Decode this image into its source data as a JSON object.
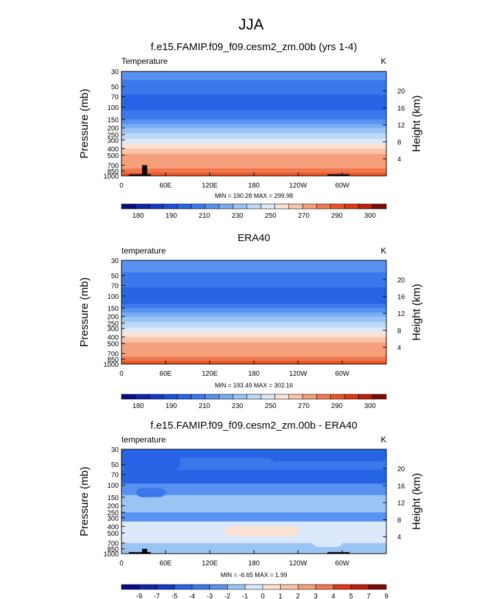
{
  "figure": {
    "main_title": "JJA",
    "season": "JJA"
  },
  "chart_data": [
    {
      "type": "heatmap",
      "title": "f.e15.FAMIP.f09_f09.cesm2_zm.00b (yrs 1-4)",
      "left_label": "Temperature",
      "right_label": "K",
      "ylabel": "Pressure (mb)",
      "y2label": "Height (km)",
      "xlabel": "",
      "x_ticks": [
        "0",
        "60E",
        "120E",
        "180",
        "120W",
        "60W"
      ],
      "x_tick_values": [
        0,
        60,
        120,
        180,
        240,
        300
      ],
      "xlim": [
        0,
        360
      ],
      "y_ticks": [
        "30",
        "50",
        "70",
        "100",
        "150",
        "200",
        "250",
        "300",
        "400",
        "500",
        "700",
        "850",
        "1000"
      ],
      "y_tick_values": [
        30,
        50,
        70,
        100,
        150,
        200,
        250,
        300,
        400,
        500,
        700,
        850,
        1000
      ],
      "ylim": [
        1000,
        30
      ],
      "height_ticks": [
        "4",
        "8",
        "12",
        "16",
        "20"
      ],
      "height_tick_values": [
        4,
        8,
        12,
        16,
        20
      ],
      "stats": "MIN = 190.28  MAX = 299.98",
      "min": 190.28,
      "max": 299.98,
      "colorbar_labels": [
        "180",
        "190",
        "210",
        "230",
        "250",
        "270",
        "290",
        "300"
      ],
      "levels": [
        175,
        180,
        185,
        190,
        200,
        210,
        220,
        230,
        240,
        250,
        260,
        270,
        280,
        290,
        295,
        300
      ],
      "bands": [
        {
          "p_top": 30,
          "p_bot": 40,
          "value": 213
        },
        {
          "p_top": 40,
          "p_bot": 55,
          "value": 208
        },
        {
          "p_top": 55,
          "p_bot": 65,
          "value": 203
        },
        {
          "p_top": 65,
          "p_bot": 110,
          "value": 197
        },
        {
          "p_top": 110,
          "p_bot": 125,
          "value": 203
        },
        {
          "p_top": 125,
          "p_bot": 150,
          "value": 208
        },
        {
          "p_top": 150,
          "p_bot": 175,
          "value": 215
        },
        {
          "p_top": 175,
          "p_bot": 200,
          "value": 225
        },
        {
          "p_top": 200,
          "p_bot": 240,
          "value": 235
        },
        {
          "p_top": 240,
          "p_bot": 290,
          "value": 245
        },
        {
          "p_top": 290,
          "p_bot": 340,
          "value": 255
        },
        {
          "p_top": 340,
          "p_bot": 400,
          "value": 265
        },
        {
          "p_top": 400,
          "p_bot": 480,
          "value": 275
        },
        {
          "p_top": 480,
          "p_bot": 580,
          "value": 283
        },
        {
          "p_top": 580,
          "p_bot": 780,
          "value": 287
        },
        {
          "p_top": 780,
          "p_bot": 900,
          "value": 292
        },
        {
          "p_top": 900,
          "p_bot": 1000,
          "value": 297
        }
      ],
      "topography": [
        {
          "lon_start": 10,
          "lon_end": 40,
          "pressure": 950
        },
        {
          "lon_start": 28,
          "lon_end": 35,
          "pressure": 700
        },
        {
          "lon_start": 280,
          "lon_end": 310,
          "pressure": 950
        }
      ]
    },
    {
      "type": "heatmap",
      "title": "ERA40",
      "left_label": "temperature",
      "right_label": "K",
      "ylabel": "Pressure (mb)",
      "y2label": "Height (km)",
      "xlabel": "",
      "x_ticks": [
        "0",
        "60E",
        "120E",
        "180",
        "120W",
        "60W"
      ],
      "x_tick_values": [
        0,
        60,
        120,
        180,
        240,
        300
      ],
      "xlim": [
        0,
        360
      ],
      "y_ticks": [
        "30",
        "50",
        "70",
        "100",
        "150",
        "200",
        "250",
        "300",
        "400",
        "500",
        "700",
        "850",
        "1000"
      ],
      "y_tick_values": [
        30,
        50,
        70,
        100,
        150,
        200,
        250,
        300,
        400,
        500,
        700,
        850,
        1000
      ],
      "ylim": [
        1000,
        30
      ],
      "height_ticks": [
        "4",
        "8",
        "12",
        "16",
        "20"
      ],
      "height_tick_values": [
        4,
        8,
        12,
        16,
        20
      ],
      "stats": "MIN = 193.49  MAX = 302.16",
      "min": 193.49,
      "max": 302.16,
      "colorbar_labels": [
        "180",
        "190",
        "210",
        "230",
        "250",
        "270",
        "290",
        "300"
      ],
      "levels": [
        175,
        180,
        185,
        190,
        200,
        210,
        220,
        230,
        240,
        250,
        260,
        270,
        280,
        290,
        295,
        300
      ],
      "bands": [
        {
          "p_top": 30,
          "p_bot": 45,
          "value": 215
        },
        {
          "p_top": 45,
          "p_bot": 60,
          "value": 208
        },
        {
          "p_top": 60,
          "p_bot": 75,
          "value": 204
        },
        {
          "p_top": 75,
          "p_bot": 130,
          "value": 197
        },
        {
          "p_top": 130,
          "p_bot": 150,
          "value": 203
        },
        {
          "p_top": 150,
          "p_bot": 175,
          "value": 212
        },
        {
          "p_top": 175,
          "p_bot": 200,
          "value": 225
        },
        {
          "p_top": 200,
          "p_bot": 240,
          "value": 235
        },
        {
          "p_top": 240,
          "p_bot": 290,
          "value": 245
        },
        {
          "p_top": 290,
          "p_bot": 340,
          "value": 255
        },
        {
          "p_top": 340,
          "p_bot": 400,
          "value": 265
        },
        {
          "p_top": 400,
          "p_bot": 480,
          "value": 275
        },
        {
          "p_top": 480,
          "p_bot": 580,
          "value": 283
        },
        {
          "p_top": 580,
          "p_bot": 780,
          "value": 287
        },
        {
          "p_top": 780,
          "p_bot": 900,
          "value": 292
        },
        {
          "p_top": 900,
          "p_bot": 1000,
          "value": 297
        }
      ],
      "topography": []
    },
    {
      "type": "heatmap",
      "title": "f.e15.FAMIP.f09_f09.cesm2_zm.00b - ERA40",
      "left_label": "temperature",
      "right_label": "K",
      "ylabel": "Pressure (mb)",
      "y2label": "Height (km)",
      "xlabel": "",
      "x_ticks": [
        "0",
        "60E",
        "120E",
        "180",
        "120W",
        "60W"
      ],
      "x_tick_values": [
        0,
        60,
        120,
        180,
        240,
        300
      ],
      "xlim": [
        0,
        360
      ],
      "y_ticks": [
        "30",
        "50",
        "70",
        "100",
        "150",
        "200",
        "250",
        "300",
        "400",
        "500",
        "700",
        "850",
        "1000"
      ],
      "y_tick_values": [
        30,
        50,
        70,
        100,
        150,
        200,
        250,
        300,
        400,
        500,
        700,
        850,
        1000
      ],
      "ylim": [
        1000,
        30
      ],
      "height_ticks": [
        "4",
        "8",
        "12",
        "16",
        "20"
      ],
      "height_tick_values": [
        4,
        8,
        12,
        16,
        20
      ],
      "stats": "MIN = -6.65  MAX =  1.99",
      "min": -6.65,
      "max": 1.99,
      "colorbar_labels": [
        "-9",
        "-7",
        "-5",
        "-4",
        "-3",
        "-2",
        "-1",
        "0",
        "1",
        "2",
        "3",
        "4",
        "5",
        "7",
        "9"
      ],
      "levels": [
        -9,
        -7,
        -5,
        -4,
        -3,
        -2,
        -1,
        0,
        1,
        2,
        3,
        4,
        5,
        7,
        9
      ],
      "bands": [
        {
          "p_top": 30,
          "p_bot": 40,
          "value": -4.5
        },
        {
          "p_top": 40,
          "p_bot": 60,
          "value": -3.5
        },
        {
          "p_top": 60,
          "p_bot": 95,
          "value": -4.5
        },
        {
          "p_top": 95,
          "p_bot": 140,
          "value": -2.5
        },
        {
          "p_top": 140,
          "p_bot": 250,
          "value": -1.5
        },
        {
          "p_top": 250,
          "p_bot": 340,
          "value": -2.5
        },
        {
          "p_top": 340,
          "p_bot": 700,
          "value": -0.5
        },
        {
          "p_top": 700,
          "p_bot": 1000,
          "value": -1.5
        }
      ],
      "patches": [
        {
          "lon_start": 200,
          "lon_end": 360,
          "p_top": 30,
          "p_bot": 45,
          "value": -4.5
        },
        {
          "lon_start": 0,
          "lon_end": 80,
          "p_top": 30,
          "p_bot": 60,
          "value": -4.5
        },
        {
          "lon_start": 20,
          "lon_end": 60,
          "p_top": 110,
          "p_bot": 150,
          "value": -3.5
        },
        {
          "lon_start": 140,
          "lon_end": 240,
          "p_top": 400,
          "p_bot": 550,
          "value": 0.5
        },
        {
          "lon_start": 260,
          "lon_end": 300,
          "p_top": 600,
          "p_bot": 800,
          "value": -0.5
        }
      ],
      "topography": [
        {
          "lon_start": 10,
          "lon_end": 40,
          "pressure": 950
        },
        {
          "lon_start": 28,
          "lon_end": 35,
          "pressure": 850
        },
        {
          "lon_start": 280,
          "lon_end": 310,
          "pressure": 950
        }
      ]
    }
  ],
  "colors": {
    "temperature_palette": [
      "#090b84",
      "#0d25a8",
      "#1439c6",
      "#1a4fdd",
      "#2764e6",
      "#3b78ec",
      "#5792f0",
      "#78acf2",
      "#9ac4f4",
      "#bdd9f7",
      "#dce9fa",
      "#fbe2d2",
      "#f8c4a9",
      "#f5a07b",
      "#f1774f",
      "#eb5526",
      "#dc3812",
      "#bd2009",
      "#7d0b06"
    ],
    "difference_palette": [
      "#090b84",
      "#0d25a8",
      "#1439c6",
      "#2764e6",
      "#3b78ec",
      "#5792f0",
      "#9ac4f4",
      "#dce9fa",
      "#fbe2d2",
      "#f8c4a9",
      "#f5a07b",
      "#f1774f",
      "#dc3812",
      "#bd2009",
      "#7d0b06"
    ],
    "topography": "#000000",
    "axis": "#000000"
  }
}
